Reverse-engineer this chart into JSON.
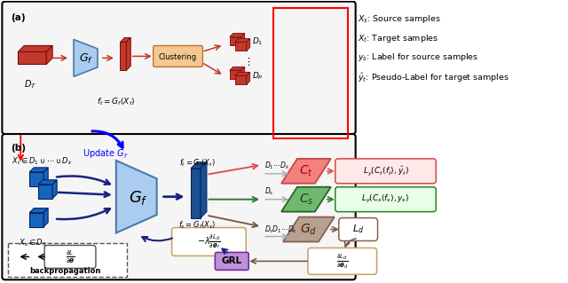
{
  "fig_width": 6.4,
  "fig_height": 3.19,
  "dpi": 100,
  "bg_color": "#ffffff",
  "legend_texts": [
    "$X_s$: Source samples",
    "$X_t$: Target samples",
    "$y_s$: Label for source samples",
    "$\\hat{y}_t$: Pseudo-Label for target samples"
  ],
  "colors": {
    "red_brick": "#c0392b",
    "red_dark": "#7b0a0a",
    "blue_dark": "#1a237e",
    "blue_light": "#aaccee",
    "blue_feature": "#1565c0",
    "pink_ct": "#f48080",
    "pink_ct_dark": "#e05050",
    "green_cs": "#70b870",
    "green_cs_dark": "#2e7d32",
    "brown_gd": "#b8a090",
    "brown_gd_dark": "#7a5c4a",
    "purple_grl": "#b070cc",
    "orange_cluster": "#f0a060",
    "gray_arrow": "#aaaaaa",
    "tan_box": "#c8a060"
  }
}
